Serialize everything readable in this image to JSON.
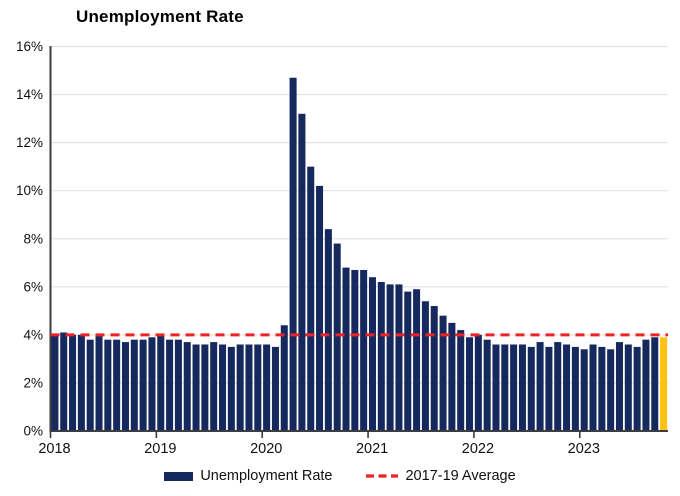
{
  "title": "Unemployment Rate",
  "legend": {
    "series1": "Unemployment Rate",
    "series2": "2017-19 Average"
  },
  "colors": {
    "bar": "#16295F",
    "highlight_bar": "#FFC20E",
    "average_line": "#EC2226",
    "gridline": "#E2E2E2",
    "axis": "#3D3D3D",
    "text": "#111111"
  },
  "chart_data": {
    "type": "bar",
    "title": "Unemployment Rate",
    "x_start": "2018-01",
    "x_end": "2023-10",
    "frequency": "monthly",
    "ylim": [
      0,
      16
    ],
    "y_ticks": [
      "0%",
      "2%",
      "4%",
      "6%",
      "8%",
      "10%",
      "12%",
      "14%",
      "16%"
    ],
    "year_labels": [
      "2018",
      "2019",
      "2020",
      "2021",
      "2022",
      "2023"
    ],
    "values": [
      4.0,
      4.1,
      4.0,
      4.0,
      3.8,
      4.0,
      3.8,
      3.8,
      3.7,
      3.8,
      3.8,
      3.9,
      4.0,
      3.8,
      3.8,
      3.7,
      3.6,
      3.6,
      3.7,
      3.6,
      3.5,
      3.6,
      3.6,
      3.6,
      3.6,
      3.5,
      4.4,
      14.7,
      13.2,
      11.0,
      10.2,
      8.4,
      7.8,
      6.8,
      6.7,
      6.7,
      6.4,
      6.2,
      6.1,
      6.1,
      5.8,
      5.9,
      5.4,
      5.2,
      4.8,
      4.5,
      4.2,
      3.9,
      4.0,
      3.8,
      3.6,
      3.6,
      3.6,
      3.6,
      3.5,
      3.7,
      3.5,
      3.7,
      3.6,
      3.5,
      3.4,
      3.6,
      3.5,
      3.4,
      3.7,
      3.6,
      3.5,
      3.8,
      3.9,
      3.9
    ],
    "highlight_last_bar": true,
    "average_line_value": 4.0,
    "legend_entries": [
      "Unemployment Rate",
      "2017-19 Average"
    ],
    "grid": "horizontal",
    "legend_position": "bottom-center"
  }
}
